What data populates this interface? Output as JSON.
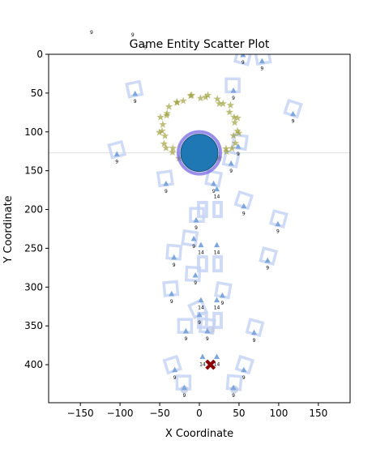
{
  "chart_data": {
    "type": "scatter",
    "title": "Game Entity Scatter Plot",
    "xlabel": "X Coordinate",
    "ylabel": "Y Coordinate",
    "xlim": [
      -190,
      190
    ],
    "ylim": [
      449,
      0
    ],
    "x_ticks": [
      -150,
      -100,
      -50,
      0,
      50,
      100,
      150
    ],
    "y_ticks": [
      0,
      50,
      100,
      150,
      200,
      250,
      300,
      350,
      400
    ],
    "horizontal_line_y": 127,
    "stray_labels": [
      {
        "text": "9",
        "x": -136,
        "y": -26
      },
      {
        "text": "9",
        "x": -84,
        "y": -23
      },
      {
        "text": "9",
        "x": -68,
        "y": -7
      }
    ],
    "player": {
      "x": 0,
      "y": 127,
      "color": "#1f77b4",
      "ring_color": "#6d5fe0"
    },
    "target": {
      "x": 14,
      "y": 400,
      "marker": "x",
      "color": "#8b0000"
    },
    "ring_stars": {
      "center_x": 0,
      "center_y": 96,
      "radius_x": 48,
      "radius_y": 42,
      "count": 44,
      "color": "#9a9a32"
    },
    "squares_small": [
      {
        "x": 55,
        "y": 3,
        "angle": 15
      },
      {
        "x": 80,
        "y": 3,
        "angle": -10
      },
      {
        "x": -82,
        "y": 45,
        "angle": -12
      },
      {
        "x": 42,
        "y": 40,
        "angle": 0
      },
      {
        "x": 118,
        "y": 70,
        "angle": 18
      },
      {
        "x": -104,
        "y": 123,
        "angle": -15
      },
      {
        "x": 51,
        "y": 113,
        "angle": 8
      },
      {
        "x": 40,
        "y": 135,
        "angle": 12
      },
      {
        "x": -43,
        "y": 160,
        "angle": -8
      },
      {
        "x": 18,
        "y": 160,
        "angle": 12
      },
      {
        "x": 56,
        "y": 188,
        "angle": 18
      },
      {
        "x": 100,
        "y": 212,
        "angle": 15
      },
      {
        "x": 87,
        "y": 260,
        "angle": 15
      },
      {
        "x": -32,
        "y": 255,
        "angle": 5
      },
      {
        "x": -12,
        "y": 237,
        "angle": 8
      },
      {
        "x": -3,
        "y": 207,
        "angle": 0
      },
      {
        "x": -36,
        "y": 302,
        "angle": -5
      },
      {
        "x": -8,
        "y": 283,
        "angle": 3
      },
      {
        "x": 30,
        "y": 304,
        "angle": 10
      },
      {
        "x": -2,
        "y": 328,
        "angle": -25
      },
      {
        "x": -18,
        "y": 350,
        "angle": 0
      },
      {
        "x": 10,
        "y": 350,
        "angle": 8
      },
      {
        "x": 70,
        "y": 352,
        "angle": 15
      },
      {
        "x": -34,
        "y": 400,
        "angle": -18
      },
      {
        "x": 57,
        "y": 400,
        "angle": 18
      },
      {
        "x": -20,
        "y": 423,
        "angle": 0
      },
      {
        "x": 44,
        "y": 423,
        "angle": 5
      }
    ],
    "rects_large": [
      {
        "x": 4,
        "y": 200,
        "w": 10,
        "h": 18
      },
      {
        "x": 23,
        "y": 200,
        "w": 9,
        "h": 18
      },
      {
        "x": 4,
        "y": 270,
        "w": 10,
        "h": 18
      },
      {
        "x": 23,
        "y": 270,
        "w": 9,
        "h": 18
      },
      {
        "x": 4,
        "y": 343,
        "w": 10,
        "h": 18
      },
      {
        "x": 23,
        "y": 343,
        "w": 9,
        "h": 18
      }
    ],
    "triangles": [
      {
        "x": 55,
        "y": 1,
        "label": "9"
      },
      {
        "x": 79,
        "y": 9,
        "label": "9"
      },
      {
        "x": -81,
        "y": 51,
        "label": "9"
      },
      {
        "x": 43,
        "y": 47,
        "label": "9"
      },
      {
        "x": 118,
        "y": 77,
        "label": "9"
      },
      {
        "x": -104,
        "y": 129,
        "label": "9"
      },
      {
        "x": 49,
        "y": 119,
        "label": "9"
      },
      {
        "x": 40,
        "y": 141,
        "label": "9"
      },
      {
        "x": -42,
        "y": 167,
        "label": "9"
      },
      {
        "x": 18,
        "y": 167,
        "label": "9"
      },
      {
        "x": 22,
        "y": 174,
        "label": "14"
      },
      {
        "x": 56,
        "y": 196,
        "label": "9"
      },
      {
        "x": 99,
        "y": 219,
        "label": "9"
      },
      {
        "x": -4,
        "y": 214,
        "label": "9"
      },
      {
        "x": -7,
        "y": 238,
        "label": "9"
      },
      {
        "x": 2,
        "y": 246,
        "label": "14"
      },
      {
        "x": 22,
        "y": 246,
        "label": "14"
      },
      {
        "x": -32,
        "y": 262,
        "label": "9"
      },
      {
        "x": 86,
        "y": 266,
        "label": "9"
      },
      {
        "x": -5,
        "y": 285,
        "label": "9"
      },
      {
        "x": -35,
        "y": 309,
        "label": "9"
      },
      {
        "x": 29,
        "y": 311,
        "label": "9"
      },
      {
        "x": 2,
        "y": 317,
        "label": "14"
      },
      {
        "x": 22,
        "y": 317,
        "label": "14"
      },
      {
        "x": 0,
        "y": 336,
        "label": "9"
      },
      {
        "x": -17,
        "y": 357,
        "label": "9"
      },
      {
        "x": 10,
        "y": 357,
        "label": "9"
      },
      {
        "x": 69,
        "y": 359,
        "label": "9"
      },
      {
        "x": 4,
        "y": 390,
        "label": "14"
      },
      {
        "x": 22,
        "y": 390,
        "label": "14"
      },
      {
        "x": -31,
        "y": 407,
        "label": "9"
      },
      {
        "x": 56,
        "y": 407,
        "label": "9"
      },
      {
        "x": -19,
        "y": 430,
        "label": "9"
      },
      {
        "x": 43,
        "y": 430,
        "label": "9"
      }
    ],
    "dots": [
      {
        "x": 14,
        "y": 355
      },
      {
        "x": -19,
        "y": 432
      },
      {
        "x": 44,
        "y": 432
      }
    ]
  }
}
